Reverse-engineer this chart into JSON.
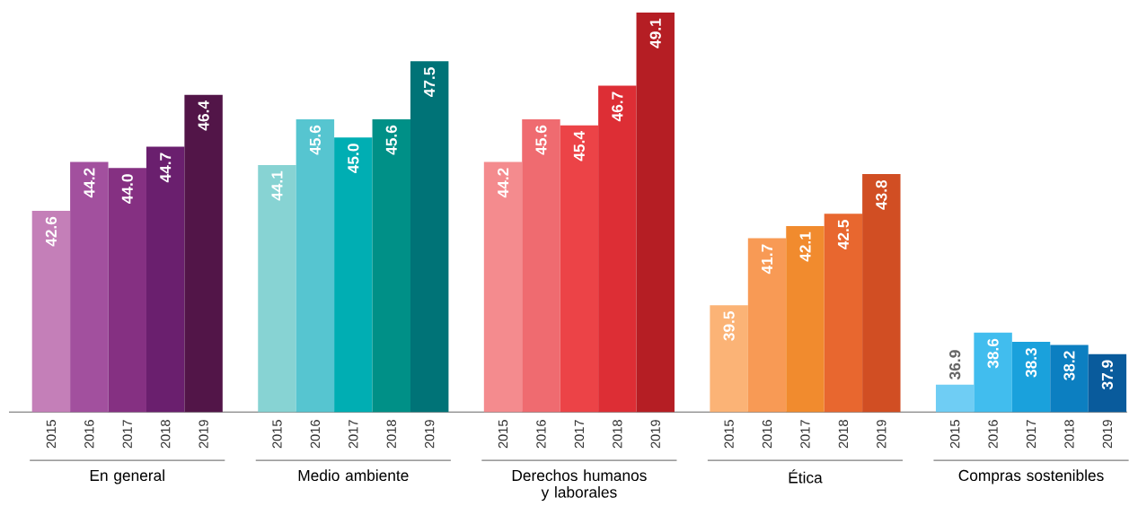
{
  "chart_data": {
    "type": "bar",
    "categories": [
      "En general",
      "Medio ambiente",
      "Derechos humanos y laborales",
      "Ética",
      "Compras sostenibles"
    ],
    "series": [
      {
        "name": "2015",
        "colors": [
          "#c47fb8",
          "#87d3d3",
          "#f48b8e",
          "#fbb376",
          "#6fcdf4"
        ],
        "values": [
          42.6,
          44.1,
          44.2,
          39.5,
          36.9
        ],
        "value_labels": [
          "42.6",
          "44.1",
          "44.2",
          "39.5",
          "36.9"
        ]
      },
      {
        "name": "2016",
        "colors": [
          "#a2509e",
          "#56c5d0",
          "#ef6b70",
          "#f89a55",
          "#41bdee"
        ],
        "values": [
          44.2,
          45.6,
          45.6,
          41.7,
          38.6
        ],
        "value_labels": [
          "44.2",
          "45.6",
          "45.6",
          "41.7",
          "38.6"
        ]
      },
      {
        "name": "2017",
        "colors": [
          "#853082",
          "#00aeb3",
          "#ec4347",
          "#f18b2e",
          "#1aa1dc"
        ],
        "values": [
          44.0,
          45.0,
          45.4,
          42.1,
          38.3
        ],
        "value_labels": [
          "44.0",
          "45.0",
          "45.4",
          "42.1",
          "38.3"
        ]
      },
      {
        "name": "2018",
        "colors": [
          "#6a1f6e",
          "#009087",
          "#dd2e35",
          "#e8672f",
          "#0c7fc1"
        ],
        "values": [
          44.7,
          45.6,
          46.7,
          42.5,
          38.2
        ],
        "value_labels": [
          "44.7",
          "45.6",
          "46.7",
          "42.5",
          "38.2"
        ]
      },
      {
        "name": "2019",
        "colors": [
          "#521548",
          "#007377",
          "#b51e24",
          "#d14e23",
          "#095b9c"
        ],
        "values": [
          46.4,
          47.5,
          49.1,
          43.8,
          37.9
        ],
        "value_labels": [
          "46.4",
          "47.5",
          "49.1",
          "43.8",
          "37.9"
        ]
      }
    ],
    "ylim": [
      36,
      49.1
    ]
  }
}
